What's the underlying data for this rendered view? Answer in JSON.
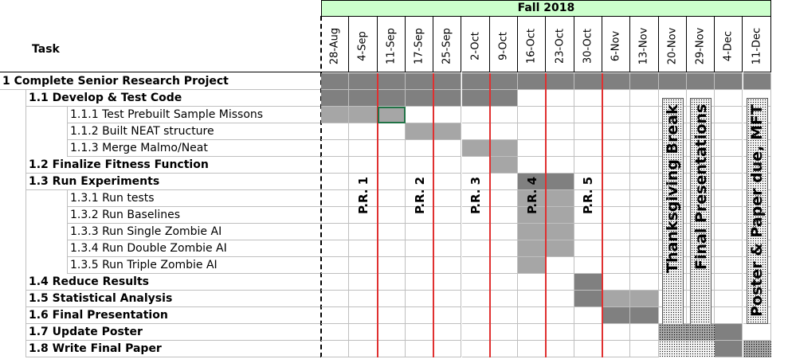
{
  "header": {
    "title": "Fall 2018",
    "task_label": "Task",
    "dates": [
      "28-Aug",
      "4-Sep",
      "11-Sep",
      "17-Sep",
      "25-Sep",
      "2-Oct",
      "9-Oct",
      "16-Oct",
      "23-Oct",
      "30-Oct",
      "6-Nov",
      "13-Nov",
      "20-Nov",
      "29-Nov",
      "4-Dec",
      "11-Dec"
    ]
  },
  "rows": [
    {
      "label": "1 Complete Senior Research Project",
      "level": 0,
      "bold": true
    },
    {
      "label": "1.1 Develop & Test Code",
      "level": 1,
      "bold": true
    },
    {
      "label": "1.1.1 Test Prebuilt Sample Missons",
      "level": 2,
      "bold": false
    },
    {
      "label": "1.1.2 Built NEAT structure",
      "level": 2,
      "bold": false
    },
    {
      "label": "1.1.3 Merge Malmo/Neat",
      "level": 2,
      "bold": false
    },
    {
      "label": "1.2 Finalize Fitness Function",
      "level": 1,
      "bold": true
    },
    {
      "label": "1.3 Run Experiments",
      "level": 1,
      "bold": true
    },
    {
      "label": "1.3.1 Run tests",
      "level": 2,
      "bold": false
    },
    {
      "label": "1.3.2 Run Baselines",
      "level": 2,
      "bold": false
    },
    {
      "label": "1.3.3 Run Single Zombie AI",
      "level": 2,
      "bold": false
    },
    {
      "label": "1.3.4 Run Double Zombie AI",
      "level": 2,
      "bold": false
    },
    {
      "label": "1.3.5 Run Triple Zombie AI",
      "level": 2,
      "bold": false
    },
    {
      "label": "1.4 Reduce Results",
      "level": 1,
      "bold": true
    },
    {
      "label": "1.5 Statistical Analysis",
      "level": 1,
      "bold": true
    },
    {
      "label": "1.6 Final Presentation",
      "level": 1,
      "bold": true
    },
    {
      "label": "1.7 Update Poster",
      "level": 1,
      "bold": true
    },
    {
      "label": "1.8 Write Final Paper",
      "level": 1,
      "bold": true
    }
  ],
  "bars": [
    {
      "row": 0,
      "cols": [
        0,
        1,
        2,
        3,
        4,
        5,
        6,
        7,
        8,
        9,
        10,
        11,
        12,
        13,
        14,
        15
      ],
      "style": "dark"
    },
    {
      "row": 1,
      "cols": [
        0,
        1,
        2,
        3,
        4,
        5,
        6
      ],
      "style": "dark"
    },
    {
      "row": 2,
      "cols": [
        0,
        1,
        2
      ],
      "style": "light"
    },
    {
      "row": 3,
      "cols": [
        3,
        4
      ],
      "style": "light"
    },
    {
      "row": 4,
      "cols": [
        5,
        6
      ],
      "style": "light"
    },
    {
      "row": 5,
      "cols": [
        6
      ],
      "style": "light"
    },
    {
      "row": 6,
      "cols": [
        7,
        8
      ],
      "style": "dark"
    },
    {
      "row": 7,
      "cols": [
        7,
        8
      ],
      "style": "light"
    },
    {
      "row": 8,
      "cols": [
        7,
        8
      ],
      "style": "light"
    },
    {
      "row": 9,
      "cols": [
        7,
        8
      ],
      "style": "light"
    },
    {
      "row": 10,
      "cols": [
        7,
        8
      ],
      "style": "light"
    },
    {
      "row": 11,
      "cols": [
        7
      ],
      "style": "light"
    },
    {
      "row": 12,
      "cols": [
        9
      ],
      "style": "dark"
    },
    {
      "row": 13,
      "cols": [
        9
      ],
      "style": "dark"
    },
    {
      "row": 13,
      "cols": [
        10,
        11
      ],
      "style": "light"
    },
    {
      "row": 14,
      "cols": [
        10,
        11
      ],
      "style": "dark"
    },
    {
      "row": 15,
      "cols": [
        14
      ],
      "style": "dark"
    },
    {
      "row": 16,
      "cols": [
        14
      ],
      "style": "dark"
    }
  ],
  "milestones": [
    {
      "label": "P.R. 1",
      "col": 1
    },
    {
      "label": "P.R. 2",
      "col": 3
    },
    {
      "label": "P.R. 3",
      "col": 5
    },
    {
      "label": "P.R. 4",
      "col": 7
    },
    {
      "label": "P.R. 5",
      "col": 9
    }
  ],
  "events": [
    {
      "label": "Thanksgiving Break",
      "col": 12
    },
    {
      "label": "Final Presentations",
      "col": 13
    },
    {
      "label": "Poster & Paper due, MFT",
      "col": 15
    }
  ],
  "review_lines_after_cols": [
    1,
    3,
    5,
    7,
    9
  ],
  "colors": {
    "header_bg": "#ccffcc",
    "bar_dark": "#808080",
    "bar_light": "#a6a6a6",
    "review_line": "#e03030",
    "selection": "#217346"
  }
}
